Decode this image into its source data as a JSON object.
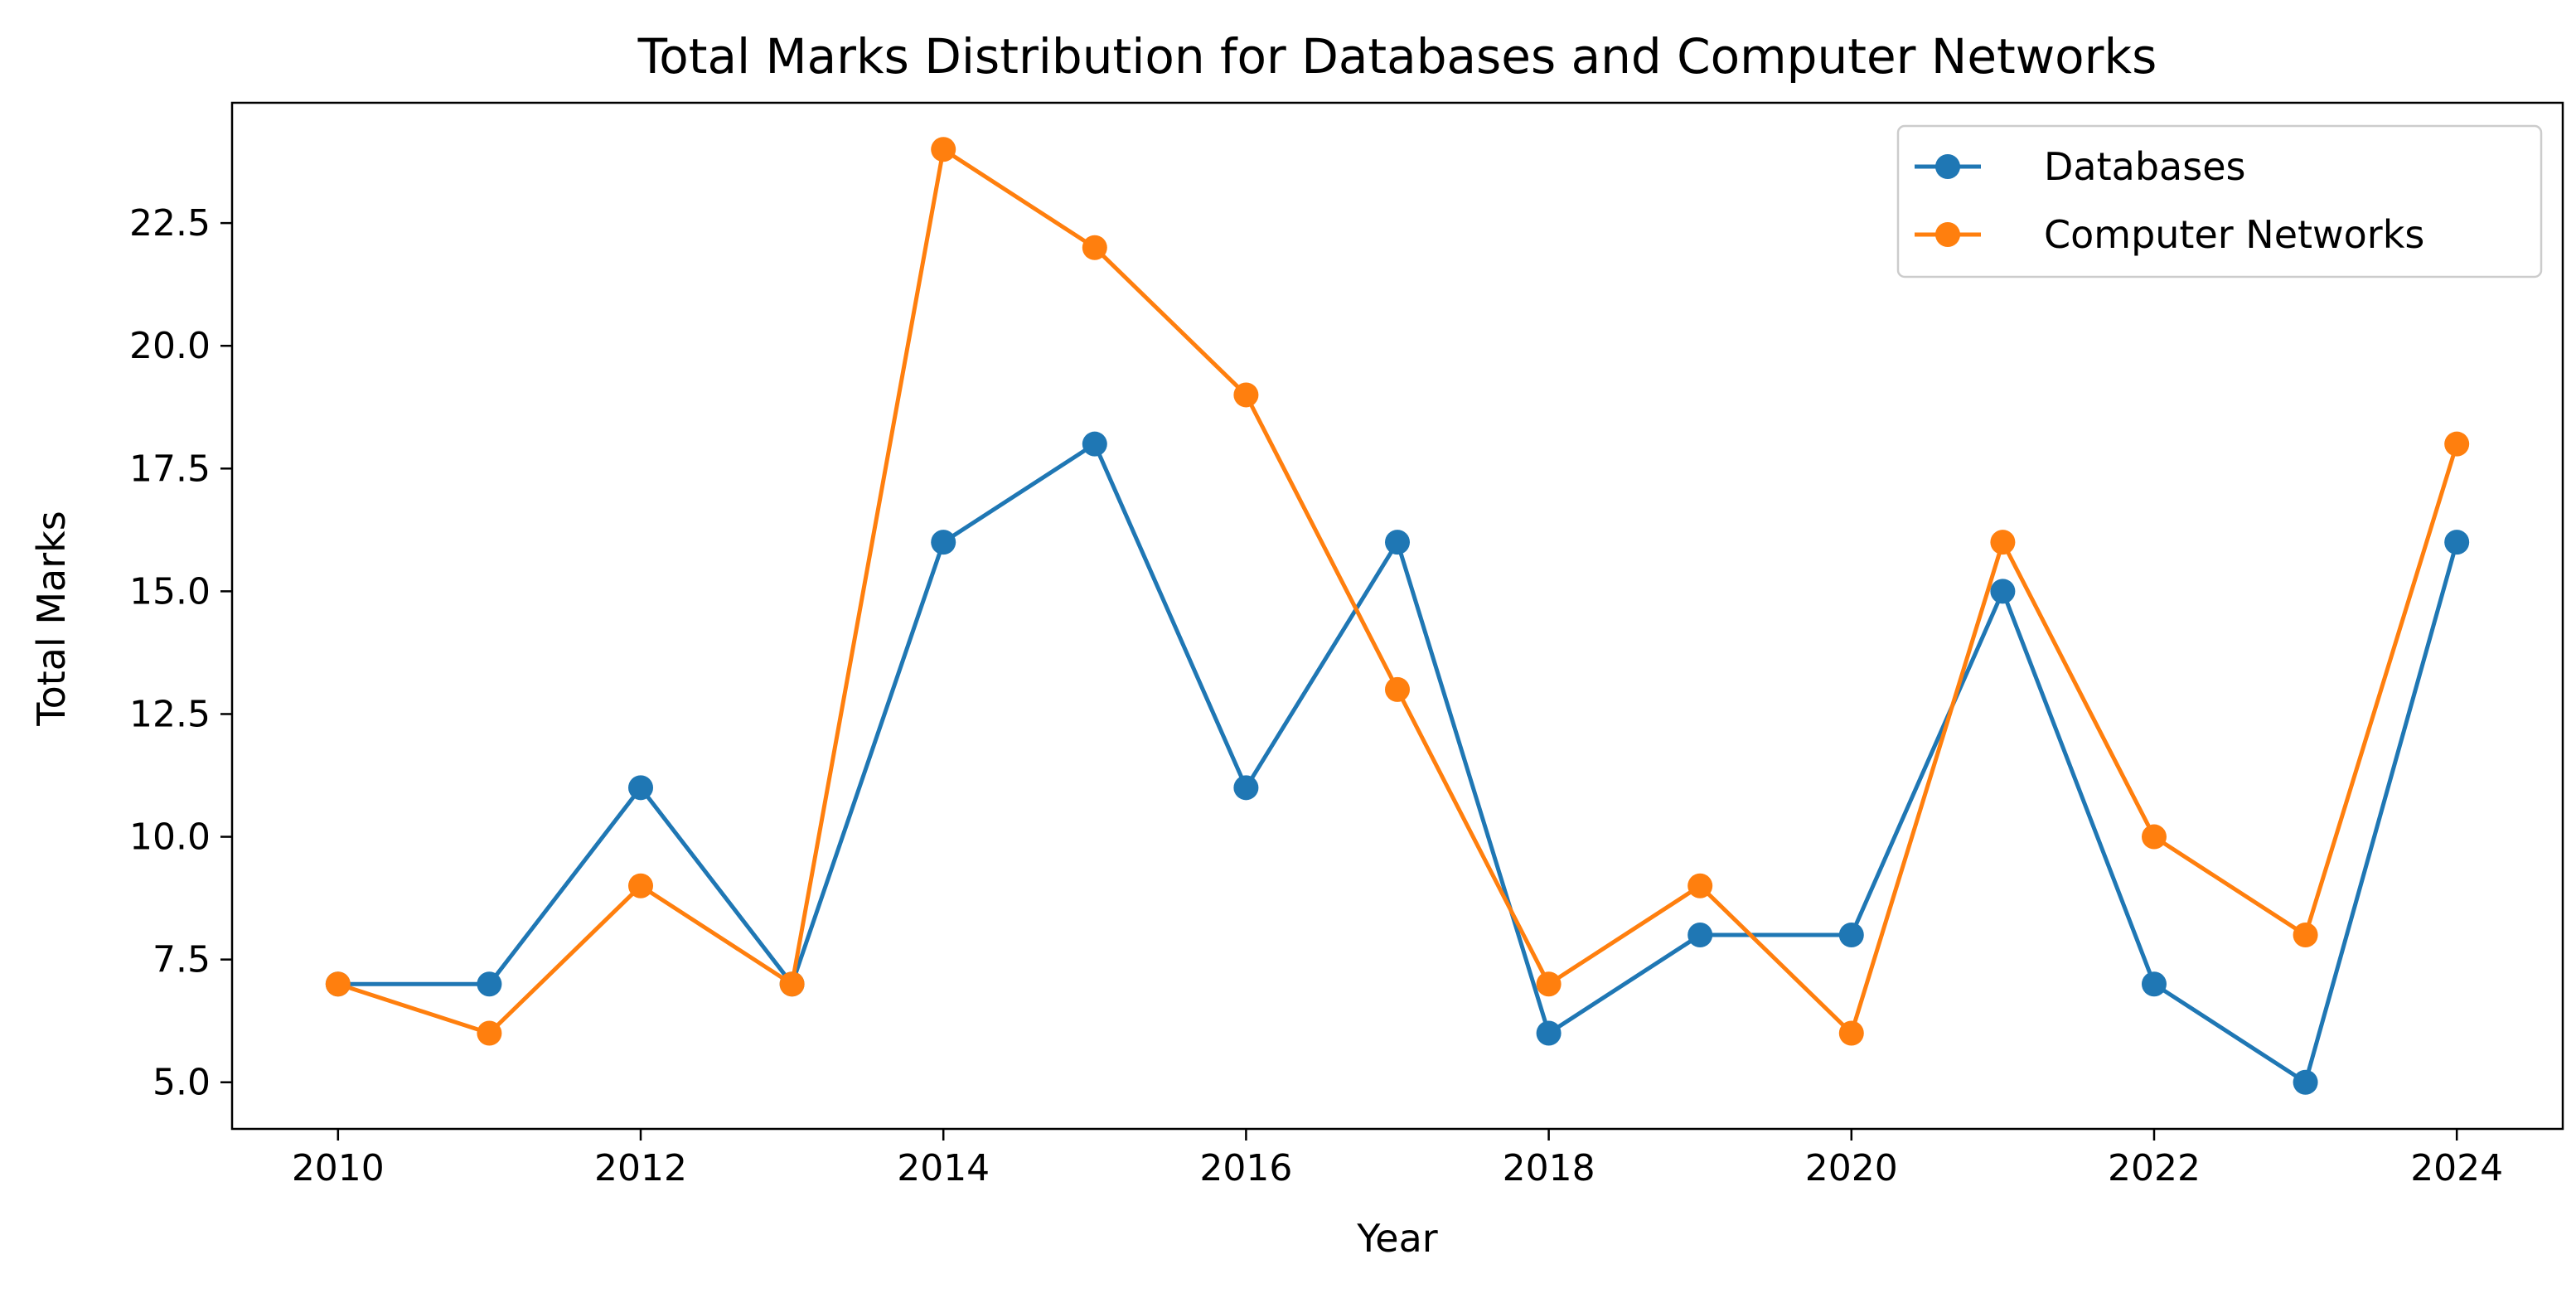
{
  "chart_data": {
    "type": "line",
    "title": "Total Marks Distribution for Databases and Computer Networks",
    "xlabel": "Year",
    "ylabel": "Total Marks",
    "x": [
      2010,
      2011,
      2012,
      2013,
      2014,
      2015,
      2016,
      2017,
      2018,
      2019,
      2020,
      2021,
      2022,
      2023,
      2024
    ],
    "xlim": [
      2009.3,
      2024.7
    ],
    "ylim": [
      4.05,
      24.95
    ],
    "xticks": [
      2010,
      2012,
      2014,
      2016,
      2018,
      2020,
      2022,
      2024
    ],
    "xtick_labels": [
      "2010",
      "2012",
      "2014",
      "2016",
      "2018",
      "2020",
      "2022",
      "2024"
    ],
    "yticks": [
      5.0,
      7.5,
      10.0,
      12.5,
      15.0,
      17.5,
      20.0,
      22.5
    ],
    "ytick_labels": [
      "5.0",
      "7.5",
      "10.0",
      "12.5",
      "15.0",
      "17.5",
      "20.0",
      "22.5"
    ],
    "grid": false,
    "legend_position": "top-right",
    "series": [
      {
        "name": "Databases",
        "color": "#1f77b4",
        "marker": "circle",
        "values": [
          7,
          7,
          11,
          7,
          16,
          18,
          11,
          16,
          6,
          8,
          8,
          15,
          7,
          5,
          16
        ]
      },
      {
        "name": "Computer Networks",
        "color": "#ff7f0e",
        "marker": "circle",
        "values": [
          7,
          6,
          9,
          7,
          24,
          22,
          19,
          13,
          7,
          9,
          6,
          16,
          10,
          8,
          18
        ]
      }
    ]
  }
}
